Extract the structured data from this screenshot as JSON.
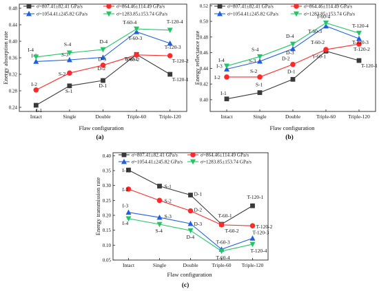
{
  "legend_items": [
    {
      "label": "σ̇=807.41±82.41   GPa/s",
      "color": "#3a3a3a",
      "marker": "square"
    },
    {
      "label": "σ̇=864.46±114.49   GPa/s",
      "color": "#ff2a2a",
      "marker": "circle"
    },
    {
      "label": "σ̇=1054.41±245.82 GPa/s",
      "color": "#1f5fe0",
      "marker": "triangle-up"
    },
    {
      "label": "σ̇=1283.85±153.74 GPa/s",
      "color": "#22c466",
      "marker": "triangle-down"
    }
  ],
  "chart_data": [
    {
      "type": "line",
      "panel_label": "(a)",
      "xlabel": "Flaw configuration",
      "ylabel": "Energy absorption rate",
      "categories": [
        "Intact",
        "Single",
        "Double",
        "Triple-60",
        "Triple-120"
      ],
      "ylim": [
        0.23,
        0.49
      ],
      "yticks": [
        0.24,
        0.28,
        0.32,
        0.36,
        0.4,
        0.44,
        0.48
      ],
      "tick_labels": [
        "0.24",
        "0.28",
        "0.32",
        "0.36",
        "0.40",
        "0.44",
        "0.48"
      ],
      "series": [
        {
          "name": "σ̇=807.41±82.41 GPa/s",
          "values": [
            0.245,
            0.292,
            0.305,
            0.368,
            0.32
          ],
          "labels": [
            "I-1",
            "S-1",
            "D-1",
            "T-60-1",
            "T-120-1"
          ]
        },
        {
          "name": "σ̇=864.46±114.49 GPa/s",
          "values": [
            0.282,
            0.323,
            0.342,
            0.367,
            0.365
          ],
          "labels": [
            "I-2",
            "S-2",
            "D-2",
            "T-60-2",
            "T-120-2"
          ]
        },
        {
          "name": "σ̇=1054.41±245.82 GPa/s",
          "values": [
            0.351,
            0.355,
            0.361,
            0.423,
            0.395
          ],
          "labels": [
            "I-3",
            "S-3",
            "D-3",
            "T-60-3",
            "T-120-3"
          ]
        },
        {
          "name": "σ̇=1283.85±153.74 GPa/s",
          "values": [
            0.362,
            0.372,
            0.38,
            0.43,
            0.427
          ],
          "labels": [
            "I-4",
            "S-4",
            "D-4",
            "T-60-4",
            "T-120-4"
          ]
        }
      ]
    },
    {
      "type": "line",
      "panel_label": "(b)",
      "xlabel": "Flaw configuration",
      "ylabel": "Energy reflectance rate",
      "categories": [
        "Intact",
        "Single",
        "Double",
        "Triple-60",
        "Triple-120"
      ],
      "ylim": [
        0.385,
        0.522
      ],
      "yticks": [
        0.4,
        0.42,
        0.44,
        0.46,
        0.48,
        0.5,
        0.52
      ],
      "tick_labels": [
        "0.40",
        "0.42",
        "0.44",
        "0.46",
        "0.48",
        "0.50",
        "0.52"
      ],
      "series": [
        {
          "name": "σ̇=807.41±82.41 GPa/s",
          "values": [
            0.401,
            0.409,
            0.426,
            0.462,
            0.45
          ],
          "labels": [
            "I-1",
            "S-1",
            "D-1",
            "T-60-1",
            "T-120-1"
          ]
        },
        {
          "name": "σ̇=864.46±114.49 GPa/s",
          "values": [
            0.429,
            0.429,
            0.445,
            0.464,
            0.471
          ],
          "labels": [
            "I-2",
            "S-2",
            "D-2",
            "T-60-2",
            "T-120-2"
          ]
        },
        {
          "name": "σ̇=1054.41±245.82 GPa/s",
          "values": [
            0.439,
            0.449,
            0.465,
            0.494,
            0.478
          ],
          "labels": [
            "I-3",
            "S-3",
            "D-3",
            "T-60-3",
            "T-120-3"
          ]
        },
        {
          "name": "σ̇=1283.85±153.74 GPa/s",
          "values": [
            0.443,
            0.455,
            0.471,
            0.498,
            0.485
          ],
          "labels": [
            "I-4",
            "S-4",
            "D-4",
            "T-60-4",
            "T-120-4"
          ]
        }
      ]
    },
    {
      "type": "line",
      "panel_label": "(c)",
      "xlabel": "Flaw configuration",
      "ylabel": "Energy transmission rate",
      "categories": [
        "Intact",
        "Single",
        "Double",
        "Triple-60",
        "Triple-120"
      ],
      "ylim": [
        0.05,
        0.41
      ],
      "yticks": [
        0.05,
        0.1,
        0.15,
        0.2,
        0.25,
        0.3,
        0.35,
        0.4
      ],
      "tick_labels": [
        "0.05",
        "0.10",
        "0.15",
        "0.20",
        "0.25",
        "0.30",
        "0.35",
        "0.40"
      ],
      "series": [
        {
          "name": "σ̇=807.41±82.41 GPa/s",
          "values": [
            0.352,
            0.298,
            0.268,
            0.17,
            0.232
          ],
          "labels": [
            "I-1",
            "S-1",
            "D-1",
            "T-60-1",
            "T-120-1"
          ]
        },
        {
          "name": "σ̇=864.46±114.49 GPa/s",
          "values": [
            0.288,
            0.25,
            0.215,
            0.168,
            0.165
          ],
          "labels": [
            "I-2",
            "S-2",
            "D-2",
            "T-60-2",
            "T-120-2"
          ]
        },
        {
          "name": "σ̇=1054.41±245.82 GPa/s",
          "values": [
            0.21,
            0.193,
            0.172,
            0.086,
            0.123
          ],
          "labels": [
            "I-3",
            "S-3",
            "D-3",
            "T-60-3",
            "T-120-3"
          ]
        },
        {
          "name": "σ̇=1283.85±153.74 GPa/s",
          "values": [
            0.189,
            0.17,
            0.149,
            0.08,
            0.103
          ],
          "labels": [
            "I-4",
            "S-4",
            "D-4",
            "T-60-4",
            "T-120-4"
          ]
        }
      ]
    }
  ]
}
